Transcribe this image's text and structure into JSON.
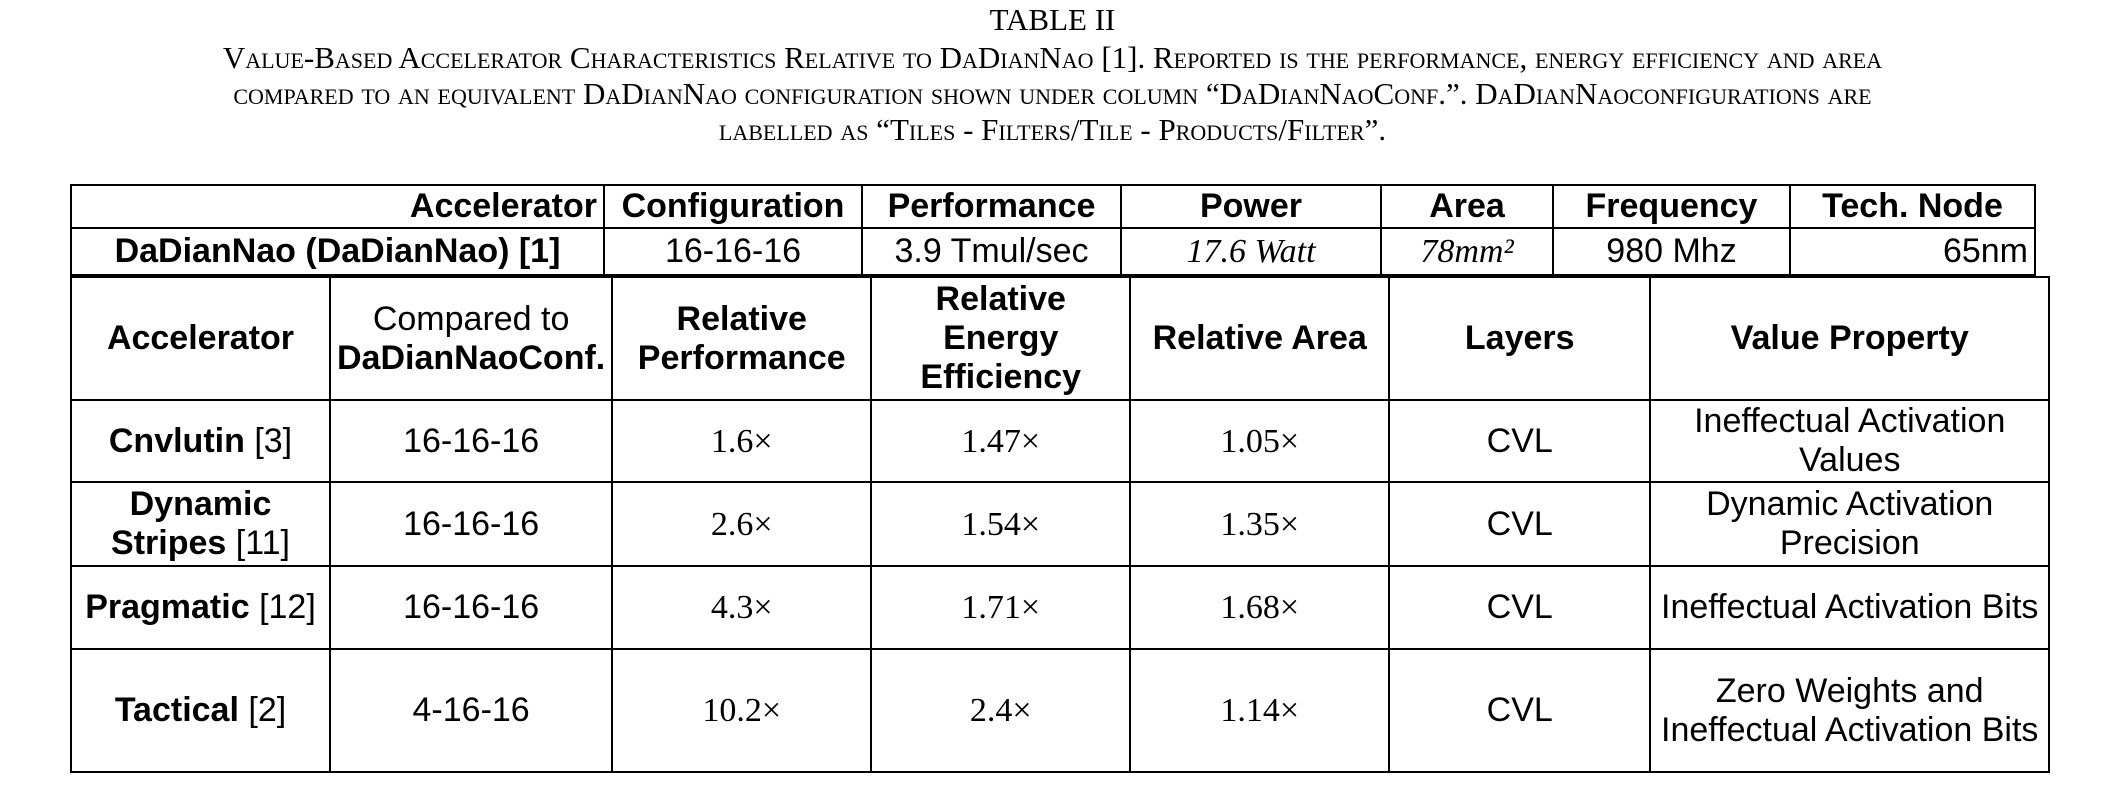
{
  "caption": {
    "label": "TABLE II",
    "lines": [
      "Value-Based Accelerator Characteristics Relative to DaDianNao [1]. Reported is the performance, energy efficiency and area",
      "compared to an equivalent DaDianNao configuration shown under column “DaDianNaoConf.”. DaDianNaoconfigurations are",
      "labelled as “Tiles - Filters/Tile - Products/Filter”."
    ]
  },
  "top_table": {
    "header": [
      "Accelerator",
      "Configuration",
      "Performance",
      "Power",
      "Area",
      "Frequency",
      "Tech. Node"
    ],
    "row": [
      "DaDianNao (DaDianNao) [1]",
      "16-16-16",
      "3.9 Tmul/sec",
      "17.6 Watt",
      "78mm²",
      "980 Mhz",
      "65nm"
    ]
  },
  "bottom_table": {
    "header": [
      "Accelerator",
      {
        "plain": "Compared to",
        "bold": "DaDianNaoConf."
      },
      "Relative Performance",
      "Relative Energy Efficiency",
      "Relative Area",
      "Layers",
      "Value Property"
    ],
    "rows": [
      [
        {
          "name": "Cnvlutin",
          "ref": "[3]"
        },
        "16-16-16",
        "1.6×",
        "1.47×",
        "1.05×",
        "CVL",
        "Ineffectual Activation Values"
      ],
      [
        {
          "name": "Dynamic Stripes",
          "ref": "[11]"
        },
        "16-16-16",
        "2.6×",
        "1.54×",
        "1.35×",
        "CVL",
        "Dynamic Activation Precision"
      ],
      [
        {
          "name": "Pragmatic",
          "ref": "[12]"
        },
        "16-16-16",
        "4.3×",
        "1.71×",
        "1.68×",
        "CVL",
        "Ineffectual Activation Bits"
      ],
      [
        {
          "name": "Tactical",
          "ref": "[2]"
        },
        "4-16-16",
        "10.2×",
        "2.4×",
        "1.14×",
        "CVL",
        "Zero Weights and Ineffectual Activation Bits"
      ]
    ]
  }
}
